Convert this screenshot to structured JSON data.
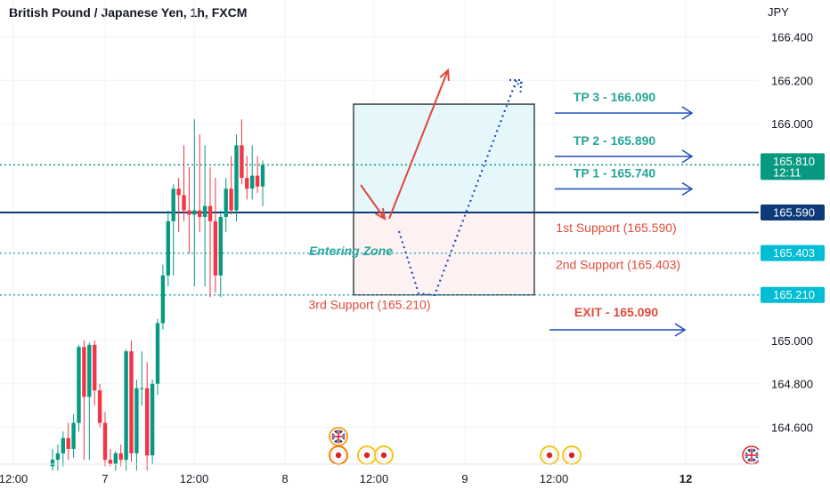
{
  "title": "British Pound / Japanese Yen, 1h, FXCM",
  "currency_label": "JPY",
  "colors": {
    "up": "#089981",
    "down": "#f23645",
    "level": "#0d3b7a",
    "dotted": "#26a7b8",
    "tp_text": "#26a69a",
    "support_text": "#e04b3a",
    "arrow_blue": "#1f4fb8",
    "arrow_red": "#e0463a"
  },
  "chart_data": {
    "type": "candlestick",
    "x_ticks": [
      "12:00",
      "7",
      "12:00",
      "8",
      "12:00",
      "9",
      "12:00",
      "12"
    ],
    "bold_x_ticks": [
      "12"
    ],
    "y_ticks": [
      "166.400",
      "166.200",
      "166.000",
      "165.000",
      "164.800",
      "164.600"
    ],
    "ylim": [
      164.43,
      166.57
    ],
    "price_badges": [
      {
        "price": 165.81,
        "label": "165.810",
        "sub": "12:11",
        "color": "#089981"
      },
      {
        "price": 165.59,
        "label": "165.590",
        "sub": "",
        "color": "#0d3b7a"
      },
      {
        "price": 165.403,
        "label": "165.403",
        "sub": "",
        "color": "#00bcd4"
      },
      {
        "price": 165.21,
        "label": "165.210",
        "sub": "",
        "color": "#00bcd4"
      }
    ],
    "horizontal_lines": [
      {
        "price": 165.59,
        "style": "solid",
        "color": "#0d3b7a"
      },
      {
        "price": 165.81,
        "style": "dotted",
        "color": "#089981"
      },
      {
        "price": 165.403,
        "style": "dotted",
        "color": "#26a7b8"
      },
      {
        "price": 165.21,
        "style": "dotted",
        "color": "#26a7b8"
      }
    ],
    "candles": [
      {
        "o": 164.42,
        "h": 164.5,
        "l": 164.4,
        "c": 164.45
      },
      {
        "o": 164.45,
        "h": 164.52,
        "l": 164.4,
        "c": 164.48
      },
      {
        "o": 164.48,
        "h": 164.58,
        "l": 164.42,
        "c": 164.55
      },
      {
        "o": 164.55,
        "h": 164.62,
        "l": 164.45,
        "c": 164.5
      },
      {
        "o": 164.5,
        "h": 164.66,
        "l": 164.46,
        "c": 164.62
      },
      {
        "o": 164.62,
        "h": 164.98,
        "l": 164.58,
        "c": 164.97
      },
      {
        "o": 164.97,
        "h": 165.0,
        "l": 164.45,
        "c": 164.74
      },
      {
        "o": 164.74,
        "h": 164.99,
        "l": 164.45,
        "c": 164.98
      },
      {
        "o": 164.98,
        "h": 165.0,
        "l": 164.7,
        "c": 164.77
      },
      {
        "o": 164.77,
        "h": 164.8,
        "l": 164.6,
        "c": 164.62
      },
      {
        "o": 164.62,
        "h": 164.67,
        "l": 164.42,
        "c": 164.45
      },
      {
        "o": 164.45,
        "h": 164.5,
        "l": 164.42,
        "c": 164.43
      },
      {
        "o": 164.43,
        "h": 164.49,
        "l": 164.4,
        "c": 164.48
      },
      {
        "o": 164.48,
        "h": 164.52,
        "l": 164.42,
        "c": 164.45
      },
      {
        "o": 164.45,
        "h": 164.96,
        "l": 164.4,
        "c": 164.95
      },
      {
        "o": 164.95,
        "h": 165.0,
        "l": 164.44,
        "c": 164.48
      },
      {
        "o": 164.48,
        "h": 164.82,
        "l": 164.4,
        "c": 164.78
      },
      {
        "o": 164.78,
        "h": 164.95,
        "l": 164.7,
        "c": 164.78
      },
      {
        "o": 164.78,
        "h": 164.9,
        "l": 164.4,
        "c": 164.47
      },
      {
        "o": 164.47,
        "h": 164.82,
        "l": 164.43,
        "c": 164.8
      },
      {
        "o": 164.8,
        "h": 165.1,
        "l": 164.75,
        "c": 165.08
      },
      {
        "o": 165.08,
        "h": 165.35,
        "l": 165.05,
        "c": 165.3
      },
      {
        "o": 165.3,
        "h": 165.6,
        "l": 165.25,
        "c": 165.55
      },
      {
        "o": 165.55,
        "h": 165.72,
        "l": 165.3,
        "c": 165.7
      },
      {
        "o": 165.7,
        "h": 165.75,
        "l": 165.5,
        "c": 165.67
      },
      {
        "o": 165.67,
        "h": 165.9,
        "l": 165.55,
        "c": 165.6
      },
      {
        "o": 165.6,
        "h": 165.8,
        "l": 165.4,
        "c": 165.58
      },
      {
        "o": 165.58,
        "h": 166.02,
        "l": 165.25,
        "c": 165.6
      },
      {
        "o": 165.6,
        "h": 165.95,
        "l": 165.5,
        "c": 165.57
      },
      {
        "o": 165.57,
        "h": 165.9,
        "l": 165.25,
        "c": 165.62
      },
      {
        "o": 165.62,
        "h": 165.8,
        "l": 165.2,
        "c": 165.55
      },
      {
        "o": 165.55,
        "h": 165.75,
        "l": 165.22,
        "c": 165.3
      },
      {
        "o": 165.3,
        "h": 165.6,
        "l": 165.2,
        "c": 165.57
      },
      {
        "o": 165.57,
        "h": 165.75,
        "l": 165.5,
        "c": 165.7
      },
      {
        "o": 165.7,
        "h": 165.85,
        "l": 165.58,
        "c": 165.6
      },
      {
        "o": 165.6,
        "h": 165.95,
        "l": 165.55,
        "c": 165.9
      },
      {
        "o": 165.9,
        "h": 166.02,
        "l": 165.72,
        "c": 165.75
      },
      {
        "o": 165.75,
        "h": 165.85,
        "l": 165.65,
        "c": 165.7
      },
      {
        "o": 165.7,
        "h": 165.9,
        "l": 165.65,
        "c": 165.76
      },
      {
        "o": 165.76,
        "h": 165.85,
        "l": 165.68,
        "c": 165.71
      },
      {
        "o": 165.71,
        "h": 165.83,
        "l": 165.62,
        "c": 165.81
      }
    ],
    "boxes": [
      {
        "top": 166.09,
        "bottom": 165.59,
        "fill": "#e6f7fb"
      },
      {
        "top": 165.59,
        "bottom": 165.21,
        "fill": "#fdf1f1"
      }
    ],
    "tp_labels": [
      {
        "text": "TP 3 - 166.090",
        "price": 166.09
      },
      {
        "text": "TP 2 - 165.890",
        "price": 165.89
      },
      {
        "text": "TP 1 - 165.740",
        "price": 165.74
      }
    ],
    "exit_label": {
      "text": "EXIT - 165.090",
      "price": 165.09
    },
    "support_labels": [
      {
        "text": "1st Support (165.590)",
        "price": 165.59
      },
      {
        "text": "2nd Support (165.403)",
        "price": 165.403
      },
      {
        "text": "3rd Support  (165.210)",
        "price": 165.21
      }
    ],
    "zone_label": "Entering Zone"
  }
}
